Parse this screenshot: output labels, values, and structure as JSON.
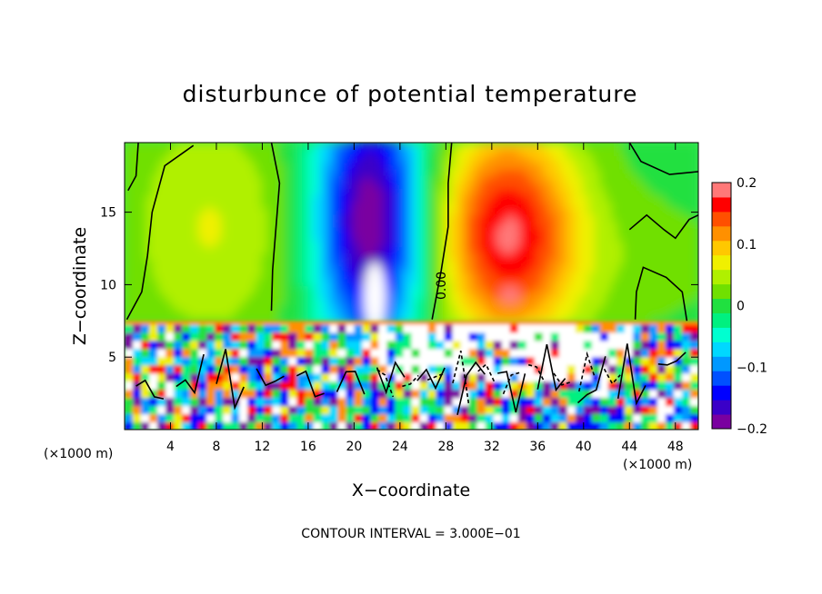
{
  "chart_data": {
    "type": "heatmap",
    "title": "disturbunce of potential temperature",
    "xlabel": "X−coordinate",
    "ylabel": "Z−coordinate",
    "x_unit": "(×1000 m)",
    "xlim": [
      0,
      50
    ],
    "ylim": [
      0,
      19.8
    ],
    "x_ticks": [
      "4",
      "8",
      "12",
      "16",
      "20",
      "24",
      "28",
      "32",
      "36",
      "40",
      "44",
      "48"
    ],
    "y_ticks": [
      "5",
      "10",
      "15"
    ],
    "colorbar": {
      "range": [
        -0.2,
        0.2
      ],
      "labels": [
        "0.2",
        "0.1",
        "0",
        "−0.1",
        "−0.2"
      ],
      "colors": [
        "#7a00a0",
        "#3a00c8",
        "#0000ff",
        "#0050ff",
        "#0098ff",
        "#00d8ff",
        "#00ffd0",
        "#00f080",
        "#20e040",
        "#70e000",
        "#b0f000",
        "#f0f000",
        "#ffc800",
        "#ff9000",
        "#ff5000",
        "#ff0000",
        "#ff7878"
      ]
    },
    "contour_label": "0.00",
    "contour_interval_text": "CONTOUR INTERVAL = 3.000E−01",
    "grid": false,
    "field_features": [
      {
        "type": "anomaly",
        "x": 21.5,
        "z_min": 7.5,
        "z_top": 18.5,
        "value": -0.2
      },
      {
        "type": "anomaly",
        "x": 33.5,
        "z_min": 7.5,
        "z_top": 16.5,
        "value": 0.18
      },
      {
        "type": "anomaly",
        "x": 7.5,
        "z_min": 7.5,
        "z_top": 17.5,
        "value": 0.06
      },
      {
        "type": "anomaly",
        "x": 46,
        "z_min": 7.5,
        "z_top": 13,
        "value": 0.02
      }
    ],
    "turbulent_layer_top": 7.3
  }
}
